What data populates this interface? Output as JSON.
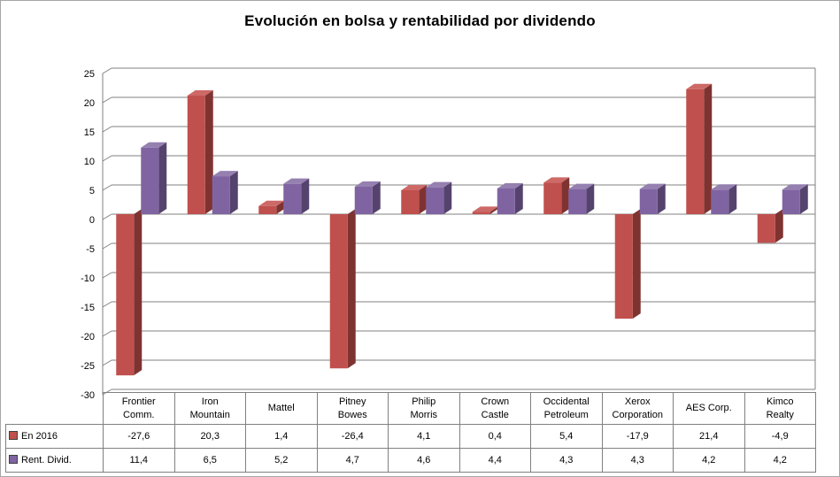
{
  "title": "Evolución en bolsa y rentabilidad por dividendo",
  "chart_data": {
    "type": "bar",
    "style": "3d-clustered-column",
    "title": "Evolución en bolsa y rentabilidad por dividendo",
    "categories": [
      "Frontier\nComm.",
      "Iron\nMountain",
      "Mattel",
      "Pitney\nBowes",
      "Philip\nMorris",
      "Crown\nCastle",
      "Occidental\nPetroleum",
      "Xerox\nCorporation",
      "AES Corp.",
      "Kimco\nRealty"
    ],
    "series": [
      {
        "name": "En 2016",
        "color": "#c0504d",
        "color_dark": "#7f3331",
        "color_light": "#cd6966",
        "values": [
          -27.6,
          20.3,
          1.4,
          -26.4,
          4.1,
          0.4,
          5.4,
          -17.9,
          21.4,
          -4.9
        ],
        "values_display": [
          "-27,6",
          "20,3",
          "1,4",
          "-26,4",
          "4,1",
          "0,4",
          "5,4",
          "-17,9",
          "21,4",
          "-4,9"
        ]
      },
      {
        "name": "Rent. Divid.",
        "color": "#8064a2",
        "color_dark": "#55436e",
        "color_light": "#9580b0",
        "values": [
          11.4,
          6.5,
          5.2,
          4.7,
          4.6,
          4.4,
          4.3,
          4.3,
          4.2,
          4.2
        ],
        "values_display": [
          "11,4",
          "6,5",
          "5,2",
          "4,7",
          "4,6",
          "4,4",
          "4,3",
          "4,3",
          "4,2",
          "4,2"
        ]
      }
    ],
    "ylim": [
      -30,
      25
    ],
    "yticks": [
      25,
      20,
      15,
      10,
      5,
      0,
      -5,
      -10,
      -15,
      -20,
      -25,
      -30
    ],
    "ytick_step": 5,
    "grid": true,
    "grid_color": "#808080",
    "legend_position": "table-left"
  }
}
